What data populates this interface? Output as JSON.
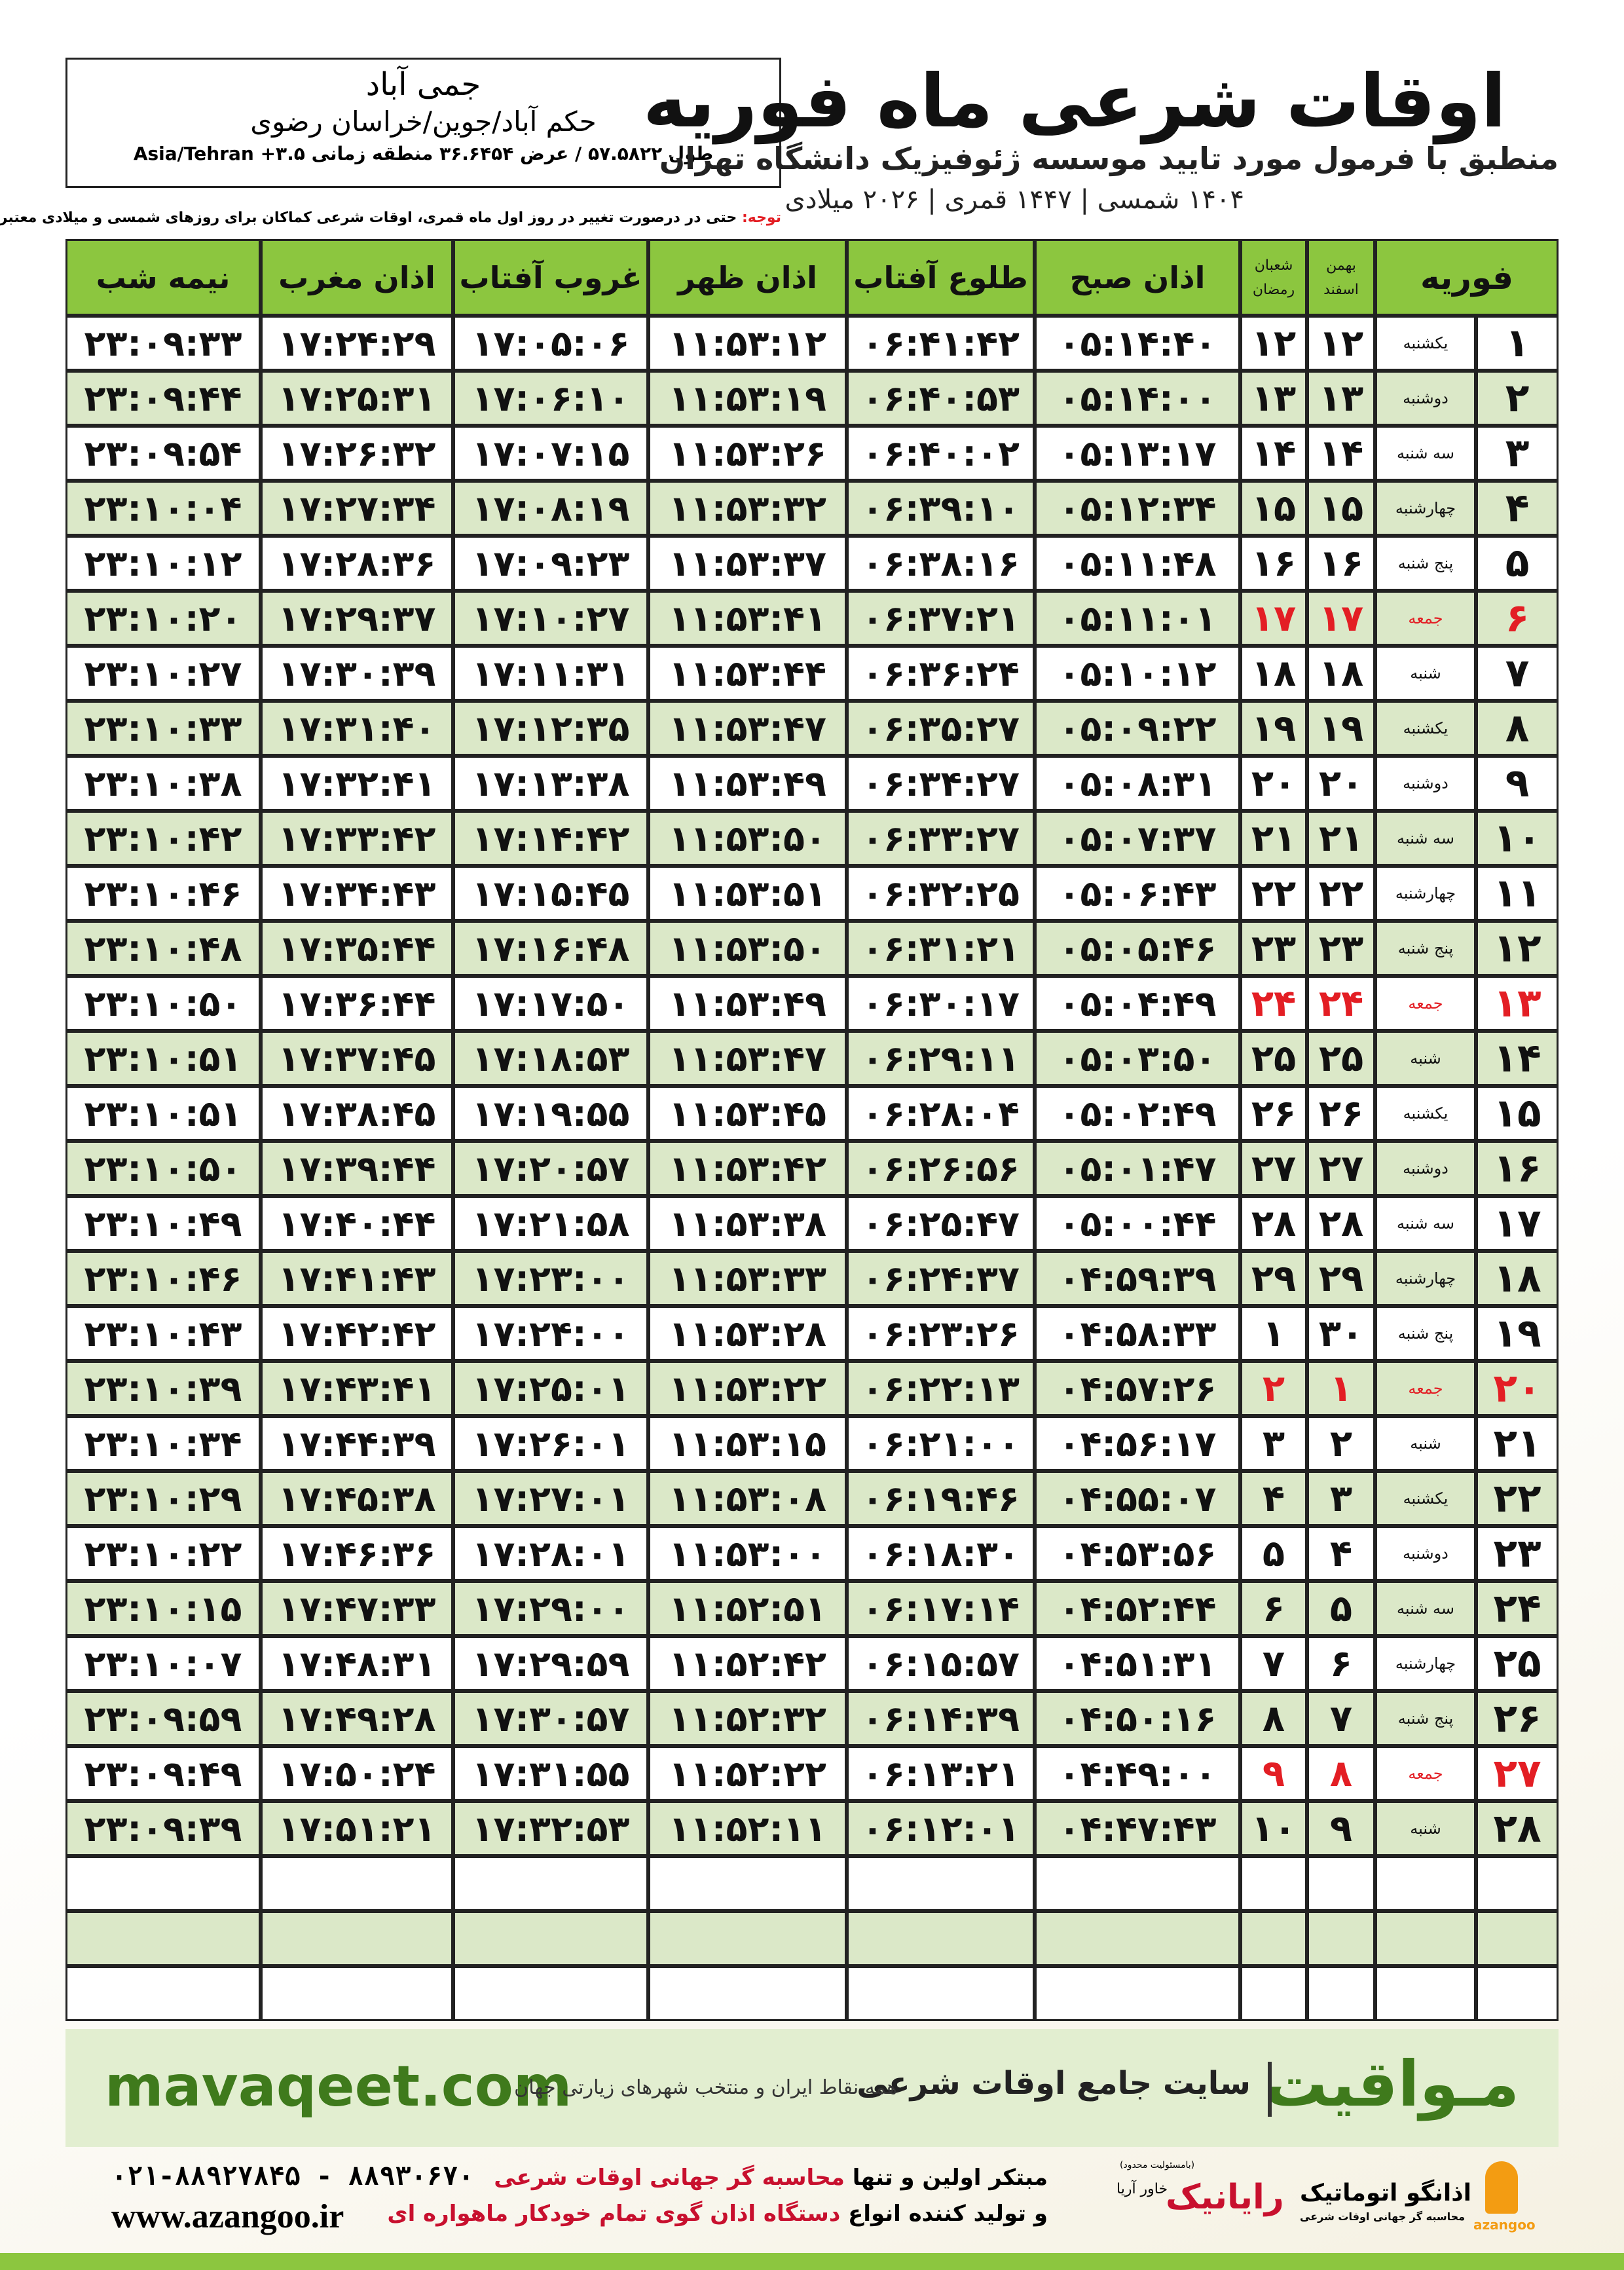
{
  "header": {
    "title": "اوقات شرعی ماه فوریه",
    "subtitle": "منطبق با فرمول مورد تایید موسسه ژئوفیزیک دانشگاه تهران",
    "calendar": "۱۴۰۴ شمسی | ۱۴۴۷ قمری | ۲۰۲۶ میلادی",
    "location": {
      "name": "جمی آباد",
      "region": "حکم آباد/جوین/خراسان رضوی",
      "coords": "طول ۵۷.۵۸۲۲ / عرض ۳۶.۶۴۵۴ منطقه زمانی ۳.۵+ Asia/Tehran"
    },
    "note_label": "توجه:",
    "note": "حتی در درصورت تغییر در روز اول ماه قمری، اوقات شرعی کماکان برای روزهای شمسی و میلادی معتبر است."
  },
  "table": {
    "columns": [
      "فوریه",
      "اذان صبح",
      "طلوع آفتاب",
      "اذان ظهر",
      "غروب آفتاب",
      "اذان مغرب",
      "نیمه شب"
    ],
    "solar_header": [
      "بهمن",
      "اسفند"
    ],
    "lunar_header": [
      "شعبان",
      "رمضان"
    ],
    "holiday_color": "#e31e24",
    "rows": [
      {
        "cells": [
          "۱",
          "یکشنبه",
          "۱۲",
          "۱۲",
          "۰۵:۱۴:۴۰",
          "۰۶:۴۱:۴۲",
          "۱۱:۵۳:۱۲",
          "۱۷:۰۵:۰۶",
          "۱۷:۲۴:۲۹",
          "۲۳:۰۹:۳۳"
        ]
      },
      {
        "cells": [
          "۲",
          "دوشنبه",
          "۱۳",
          "۱۳",
          "۰۵:۱۴:۰۰",
          "۰۶:۴۰:۵۳",
          "۱۱:۵۳:۱۹",
          "۱۷:۰۶:۱۰",
          "۱۷:۲۵:۳۱",
          "۲۳:۰۹:۴۴"
        ]
      },
      {
        "cells": [
          "۳",
          "سه شنبه",
          "۱۴",
          "۱۴",
          "۰۵:۱۳:۱۷",
          "۰۶:۴۰:۰۲",
          "۱۱:۵۳:۲۶",
          "۱۷:۰۷:۱۵",
          "۱۷:۲۶:۳۲",
          "۲۳:۰۹:۵۴"
        ]
      },
      {
        "cells": [
          "۴",
          "چهارشنبه",
          "۱۵",
          "۱۵",
          "۰۵:۱۲:۳۴",
          "۰۶:۳۹:۱۰",
          "۱۱:۵۳:۳۲",
          "۱۷:۰۸:۱۹",
          "۱۷:۲۷:۳۴",
          "۲۳:۱۰:۰۴"
        ]
      },
      {
        "cells": [
          "۵",
          "پنج شنبه",
          "۱۶",
          "۱۶",
          "۰۵:۱۱:۴۸",
          "۰۶:۳۸:۱۶",
          "۱۱:۵۳:۳۷",
          "۱۷:۰۹:۲۳",
          "۱۷:۲۸:۳۶",
          "۲۳:۱۰:۱۲"
        ]
      },
      {
        "cells": [
          "۶",
          "جمعه",
          "۱۷",
          "۱۷",
          "۰۵:۱۱:۰۱",
          "۰۶:۳۷:۲۱",
          "۱۱:۵۳:۴۱",
          "۱۷:۱۰:۲۷",
          "۱۷:۲۹:۳۷",
          "۲۳:۱۰:۲۰"
        ],
        "holiday": true
      },
      {
        "cells": [
          "۷",
          "شنبه",
          "۱۸",
          "۱۸",
          "۰۵:۱۰:۱۲",
          "۰۶:۳۶:۲۴",
          "۱۱:۵۳:۴۴",
          "۱۷:۱۱:۳۱",
          "۱۷:۳۰:۳۹",
          "۲۳:۱۰:۲۷"
        ]
      },
      {
        "cells": [
          "۸",
          "یکشنبه",
          "۱۹",
          "۱۹",
          "۰۵:۰۹:۲۲",
          "۰۶:۳۵:۲۷",
          "۱۱:۵۳:۴۷",
          "۱۷:۱۲:۳۵",
          "۱۷:۳۱:۴۰",
          "۲۳:۱۰:۳۳"
        ]
      },
      {
        "cells": [
          "۹",
          "دوشنبه",
          "۲۰",
          "۲۰",
          "۰۵:۰۸:۳۱",
          "۰۶:۳۴:۲۷",
          "۱۱:۵۳:۴۹",
          "۱۷:۱۳:۳۸",
          "۱۷:۳۲:۴۱",
          "۲۳:۱۰:۳۸"
        ]
      },
      {
        "cells": [
          "۱۰",
          "سه شنبه",
          "۲۱",
          "۲۱",
          "۰۵:۰۷:۳۷",
          "۰۶:۳۳:۲۷",
          "۱۱:۵۳:۵۰",
          "۱۷:۱۴:۴۲",
          "۱۷:۳۳:۴۲",
          "۲۳:۱۰:۴۲"
        ]
      },
      {
        "cells": [
          "۱۱",
          "چهارشنبه",
          "۲۲",
          "۲۲",
          "۰۵:۰۶:۴۳",
          "۰۶:۳۲:۲۵",
          "۱۱:۵۳:۵۱",
          "۱۷:۱۵:۴۵",
          "۱۷:۳۴:۴۳",
          "۲۳:۱۰:۴۶"
        ]
      },
      {
        "cells": [
          "۱۲",
          "پنج شنبه",
          "۲۳",
          "۲۳",
          "۰۵:۰۵:۴۶",
          "۰۶:۳۱:۲۱",
          "۱۱:۵۳:۵۰",
          "۱۷:۱۶:۴۸",
          "۱۷:۳۵:۴۴",
          "۲۳:۱۰:۴۸"
        ]
      },
      {
        "cells": [
          "۱۳",
          "جمعه",
          "۲۴",
          "۲۴",
          "۰۵:۰۴:۴۹",
          "۰۶:۳۰:۱۷",
          "۱۱:۵۳:۴۹",
          "۱۷:۱۷:۵۰",
          "۱۷:۳۶:۴۴",
          "۲۳:۱۰:۵۰"
        ],
        "holiday": true
      },
      {
        "cells": [
          "۱۴",
          "شنبه",
          "۲۵",
          "۲۵",
          "۰۵:۰۳:۵۰",
          "۰۶:۲۹:۱۱",
          "۱۱:۵۳:۴۷",
          "۱۷:۱۸:۵۳",
          "۱۷:۳۷:۴۵",
          "۲۳:۱۰:۵۱"
        ]
      },
      {
        "cells": [
          "۱۵",
          "یکشنبه",
          "۲۶",
          "۲۶",
          "۰۵:۰۲:۴۹",
          "۰۶:۲۸:۰۴",
          "۱۱:۵۳:۴۵",
          "۱۷:۱۹:۵۵",
          "۱۷:۳۸:۴۵",
          "۲۳:۱۰:۵۱"
        ]
      },
      {
        "cells": [
          "۱۶",
          "دوشنبه",
          "۲۷",
          "۲۷",
          "۰۵:۰۱:۴۷",
          "۰۶:۲۶:۵۶",
          "۱۱:۵۳:۴۲",
          "۱۷:۲۰:۵۷",
          "۱۷:۳۹:۴۴",
          "۲۳:۱۰:۵۰"
        ]
      },
      {
        "cells": [
          "۱۷",
          "سه شنبه",
          "۲۸",
          "۲۸",
          "۰۵:۰۰:۴۴",
          "۰۶:۲۵:۴۷",
          "۱۱:۵۳:۳۸",
          "۱۷:۲۱:۵۸",
          "۱۷:۴۰:۴۴",
          "۲۳:۱۰:۴۹"
        ]
      },
      {
        "cells": [
          "۱۸",
          "چهارشنبه",
          "۲۹",
          "۲۹",
          "۰۴:۵۹:۳۹",
          "۰۶:۲۴:۳۷",
          "۱۱:۵۳:۳۳",
          "۱۷:۲۳:۰۰",
          "۱۷:۴۱:۴۳",
          "۲۳:۱۰:۴۶"
        ]
      },
      {
        "cells": [
          "۱۹",
          "پنج شنبه",
          "۳۰",
          "۱",
          "۰۴:۵۸:۳۳",
          "۰۶:۲۳:۲۶",
          "۱۱:۵۳:۲۸",
          "۱۷:۲۴:۰۰",
          "۱۷:۴۲:۴۲",
          "۲۳:۱۰:۴۳"
        ]
      },
      {
        "cells": [
          "۲۰",
          "جمعه",
          "۱",
          "۲",
          "۰۴:۵۷:۲۶",
          "۰۶:۲۲:۱۳",
          "۱۱:۵۳:۲۲",
          "۱۷:۲۵:۰۱",
          "۱۷:۴۳:۴۱",
          "۲۳:۱۰:۳۹"
        ],
        "holiday": true
      },
      {
        "cells": [
          "۲۱",
          "شنبه",
          "۲",
          "۳",
          "۰۴:۵۶:۱۷",
          "۰۶:۲۱:۰۰",
          "۱۱:۵۳:۱۵",
          "۱۷:۲۶:۰۱",
          "۱۷:۴۴:۳۹",
          "۲۳:۱۰:۳۴"
        ]
      },
      {
        "cells": [
          "۲۲",
          "یکشنبه",
          "۳",
          "۴",
          "۰۴:۵۵:۰۷",
          "۰۶:۱۹:۴۶",
          "۱۱:۵۳:۰۸",
          "۱۷:۲۷:۰۱",
          "۱۷:۴۵:۳۸",
          "۲۳:۱۰:۲۹"
        ]
      },
      {
        "cells": [
          "۲۳",
          "دوشنبه",
          "۴",
          "۵",
          "۰۴:۵۳:۵۶",
          "۰۶:۱۸:۳۰",
          "۱۱:۵۳:۰۰",
          "۱۷:۲۸:۰۱",
          "۱۷:۴۶:۳۶",
          "۲۳:۱۰:۲۲"
        ]
      },
      {
        "cells": [
          "۲۴",
          "سه شنبه",
          "۵",
          "۶",
          "۰۴:۵۲:۴۴",
          "۰۶:۱۷:۱۴",
          "۱۱:۵۲:۵۱",
          "۱۷:۲۹:۰۰",
          "۱۷:۴۷:۳۳",
          "۲۳:۱۰:۱۵"
        ]
      },
      {
        "cells": [
          "۲۵",
          "چهارشنبه",
          "۶",
          "۷",
          "۰۴:۵۱:۳۱",
          "۰۶:۱۵:۵۷",
          "۱۱:۵۲:۴۲",
          "۱۷:۲۹:۵۹",
          "۱۷:۴۸:۳۱",
          "۲۳:۱۰:۰۷"
        ]
      },
      {
        "cells": [
          "۲۶",
          "پنج شنبه",
          "۷",
          "۸",
          "۰۴:۵۰:۱۶",
          "۰۶:۱۴:۳۹",
          "۱۱:۵۲:۳۲",
          "۱۷:۳۰:۵۷",
          "۱۷:۴۹:۲۸",
          "۲۳:۰۹:۵۹"
        ]
      },
      {
        "cells": [
          "۲۷",
          "جمعه",
          "۸",
          "۹",
          "۰۴:۴۹:۰۰",
          "۰۶:۱۳:۲۱",
          "۱۱:۵۲:۲۲",
          "۱۷:۳۱:۵۵",
          "۱۷:۵۰:۲۴",
          "۲۳:۰۹:۴۹"
        ],
        "holiday": true
      },
      {
        "cells": [
          "۲۸",
          "شنبه",
          "۹",
          "۱۰",
          "۰۴:۴۷:۴۳",
          "۰۶:۱۲:۰۱",
          "۱۱:۵۲:۱۱",
          "۱۷:۳۲:۵۳",
          "۱۷:۵۱:۲۱",
          "۲۳:۰۹:۳۹"
        ]
      }
    ]
  },
  "footer": {
    "site": "mavaqeet.com",
    "brand": "مـواقیت",
    "slogan": "سایت جامع اوقات شرعی",
    "slogan_sub": "همه نقاط ایران و منتخب شهرهای زیارتی جهان",
    "phones": "۰۲۱-۸۸۹۲۷۸۴۵ - ۸۸۹۳۰۶۷۰",
    "web": "www.azangoo.ir",
    "line1_a": "مبتکر اولین و تنها",
    "line1_b": "محاسبه گر جهانی اوقات شرعی",
    "line2_a": "و تولید کننده انواع",
    "line2_b": "دستگاه اذان گوی تمام خودکار ماهواره ای",
    "raianik": "رایانیک",
    "raianik_sub": "خاور آریا",
    "raianik_note": "(بامسئولیت محدود)",
    "azangoo_fa": "اذانگو اتوماتیک",
    "azangoo_sub": "محاسبه گر جهانی اوقات شرعی",
    "azangoo_en": "azangoo"
  }
}
